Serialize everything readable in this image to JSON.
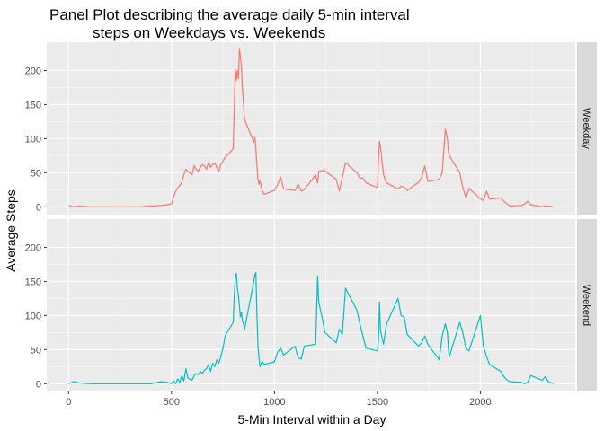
{
  "chart_data": {
    "type": "line",
    "title_lines": [
      "Panel Plot describing the average daily 5-min interval",
      "steps on Weekdays vs. Weekends"
    ],
    "xlabel": "5-Min Interval within a Day",
    "ylabel": "Average Steps",
    "xlim": [
      0,
      2355
    ],
    "ylim": [
      0,
      230
    ],
    "x_ticks": [
      0,
      500,
      1000,
      1500,
      2000
    ],
    "y_ticks": [
      0,
      50,
      100,
      150,
      200
    ],
    "grid": true,
    "panel_background": "#ebebeb",
    "grid_color": "#ffffff",
    "strip_background": "#d9d9d9",
    "facets": [
      {
        "label": "Weekday",
        "color": "#f8766d",
        "x": [
          0,
          25,
          50,
          100,
          150,
          200,
          250,
          300,
          350,
          400,
          450,
          480,
          500,
          510,
          520,
          530,
          540,
          550,
          560,
          570,
          580,
          600,
          610,
          620,
          630,
          640,
          650,
          660,
          670,
          680,
          690,
          700,
          710,
          720,
          730,
          740,
          750,
          760,
          800,
          805,
          810,
          815,
          820,
          825,
          830,
          835,
          840,
          845,
          850,
          855,
          900,
          905,
          910,
          915,
          920,
          925,
          930,
          940,
          950,
          1000,
          1015,
          1030,
          1045,
          1100,
          1115,
          1130,
          1145,
          1200,
          1210,
          1215,
          1230,
          1245,
          1300,
          1315,
          1330,
          1345,
          1400,
          1415,
          1430,
          1445,
          1500,
          1505,
          1510,
          1515,
          1530,
          1545,
          1600,
          1615,
          1630,
          1645,
          1700,
          1715,
          1730,
          1745,
          1800,
          1815,
          1830,
          1840,
          1845,
          1850,
          1900,
          1915,
          1930,
          1945,
          2000,
          2015,
          2030,
          2045,
          2100,
          2115,
          2130,
          2145,
          2200,
          2215,
          2230,
          2245,
          2300,
          2315,
          2330,
          2355
        ],
        "values": [
          2,
          0,
          1,
          0,
          0,
          0,
          0,
          0,
          0,
          1,
          2,
          3,
          4,
          14,
          22,
          28,
          31,
          36,
          47,
          55,
          52,
          47,
          60,
          55,
          52,
          58,
          62,
          60,
          55,
          65,
          58,
          62,
          64,
          58,
          52,
          62,
          67,
          72,
          85,
          150,
          202,
          185,
          200,
          188,
          231,
          220,
          204,
          172,
          150,
          128,
          95,
          102,
          85,
          60,
          40,
          33,
          38,
          24,
          18,
          24,
          32,
          44,
          26,
          24,
          33,
          23,
          25,
          47,
          35,
          52,
          53,
          53,
          40,
          23,
          43,
          65,
          50,
          42,
          42,
          35,
          28,
          66,
          96,
          88,
          47,
          35,
          26,
          30,
          29,
          24,
          36,
          43,
          60,
          37,
          40,
          50,
          114,
          100,
          80,
          75,
          50,
          28,
          13,
          27,
          12,
          9,
          23,
          11,
          13,
          8,
          4,
          1,
          2,
          4,
          8,
          3,
          0,
          1,
          1,
          0
        ]
      },
      {
        "label": "Weekend",
        "color": "#00bfc4",
        "x": [
          0,
          25,
          50,
          100,
          150,
          200,
          250,
          300,
          350,
          400,
          450,
          480,
          500,
          510,
          520,
          530,
          540,
          550,
          560,
          570,
          580,
          600,
          610,
          620,
          630,
          640,
          650,
          660,
          670,
          680,
          690,
          700,
          710,
          720,
          730,
          740,
          750,
          760,
          800,
          805,
          810,
          815,
          820,
          825,
          830,
          835,
          840,
          845,
          850,
          855,
          900,
          905,
          910,
          915,
          920,
          925,
          930,
          940,
          950,
          1000,
          1015,
          1030,
          1045,
          1100,
          1115,
          1130,
          1145,
          1200,
          1210,
          1215,
          1230,
          1245,
          1300,
          1315,
          1330,
          1345,
          1400,
          1415,
          1430,
          1445,
          1500,
          1505,
          1510,
          1515,
          1530,
          1545,
          1600,
          1615,
          1630,
          1645,
          1700,
          1715,
          1730,
          1745,
          1800,
          1815,
          1830,
          1840,
          1845,
          1850,
          1900,
          1915,
          1930,
          1945,
          2000,
          2015,
          2030,
          2045,
          2100,
          2115,
          2130,
          2145,
          2200,
          2215,
          2230,
          2245,
          2300,
          2315,
          2330,
          2355
        ],
        "values": [
          0,
          3,
          1,
          0,
          0,
          0,
          0,
          0,
          0,
          0,
          3,
          2,
          0,
          4,
          0,
          7,
          2,
          12,
          4,
          22,
          8,
          5,
          12,
          15,
          13,
          18,
          15,
          20,
          22,
          28,
          18,
          30,
          25,
          35,
          30,
          40,
          52,
          70,
          90,
          130,
          155,
          162,
          140,
          130,
          113,
          98,
          105,
          92,
          88,
          80,
          150,
          160,
          163,
          100,
          55,
          38,
          25,
          33,
          28,
          32,
          46,
          52,
          42,
          55,
          38,
          36,
          55,
          58,
          158,
          120,
          100,
          75,
          60,
          80,
          72,
          140,
          108,
          88,
          70,
          52,
          48,
          62,
          120,
          78,
          58,
          88,
          125,
          100,
          98,
          72,
          55,
          60,
          70,
          58,
          35,
          70,
          88,
          75,
          50,
          40,
          90,
          75,
          52,
          48,
          100,
          55,
          40,
          28,
          18,
          10,
          5,
          3,
          2,
          0,
          2,
          12,
          5,
          10,
          3,
          0
        ]
      }
    ]
  }
}
